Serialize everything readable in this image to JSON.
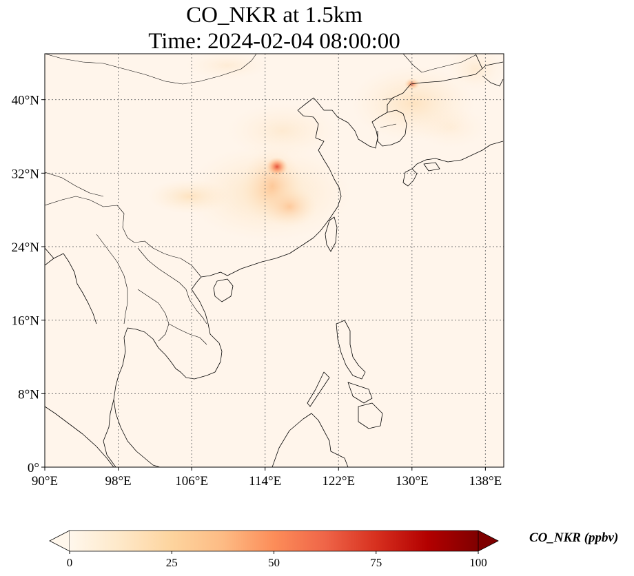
{
  "title": {
    "line1": "CO_NKR at 1.5km",
    "line2": "Time: 2024-02-04 08:00:00"
  },
  "map": {
    "projection": "PlateCarree",
    "lon_range": [
      90,
      140
    ],
    "lat_range": [
      0,
      45
    ],
    "gridlines": "dotted",
    "lon_ticks": [
      {
        "value": 90,
        "label": "90°E"
      },
      {
        "value": 98,
        "label": "98°E"
      },
      {
        "value": 106,
        "label": "106°E"
      },
      {
        "value": 114,
        "label": "114°E"
      },
      {
        "value": 122,
        "label": "122°E"
      },
      {
        "value": 130,
        "label": "130°E"
      },
      {
        "value": 138,
        "label": "138°E"
      }
    ],
    "lat_ticks": [
      {
        "value": 0,
        "label": "0°"
      },
      {
        "value": 8,
        "label": "8°N"
      },
      {
        "value": 16,
        "label": "16°N"
      },
      {
        "value": 24,
        "label": "24°N"
      },
      {
        "value": 32,
        "label": "32°N"
      },
      {
        "value": 40,
        "label": "40°N"
      }
    ],
    "field_background_color": "#fff5eb"
  },
  "colorbar": {
    "label": "CO_NKR (ppbv)",
    "min": 0,
    "max": 100,
    "extend": "both",
    "colormap": "OrRd",
    "ticks": [
      {
        "value": 0,
        "label": "0"
      },
      {
        "value": 25,
        "label": "25"
      },
      {
        "value": 50,
        "label": "50"
      },
      {
        "value": 75,
        "label": "75"
      },
      {
        "value": 100,
        "label": "100"
      }
    ],
    "stops": [
      "#fff7ec",
      "#fee8c8",
      "#fdd49e",
      "#fdbb84",
      "#fc8d59",
      "#ef6548",
      "#d7301f",
      "#b30000",
      "#7f0000"
    ]
  }
}
